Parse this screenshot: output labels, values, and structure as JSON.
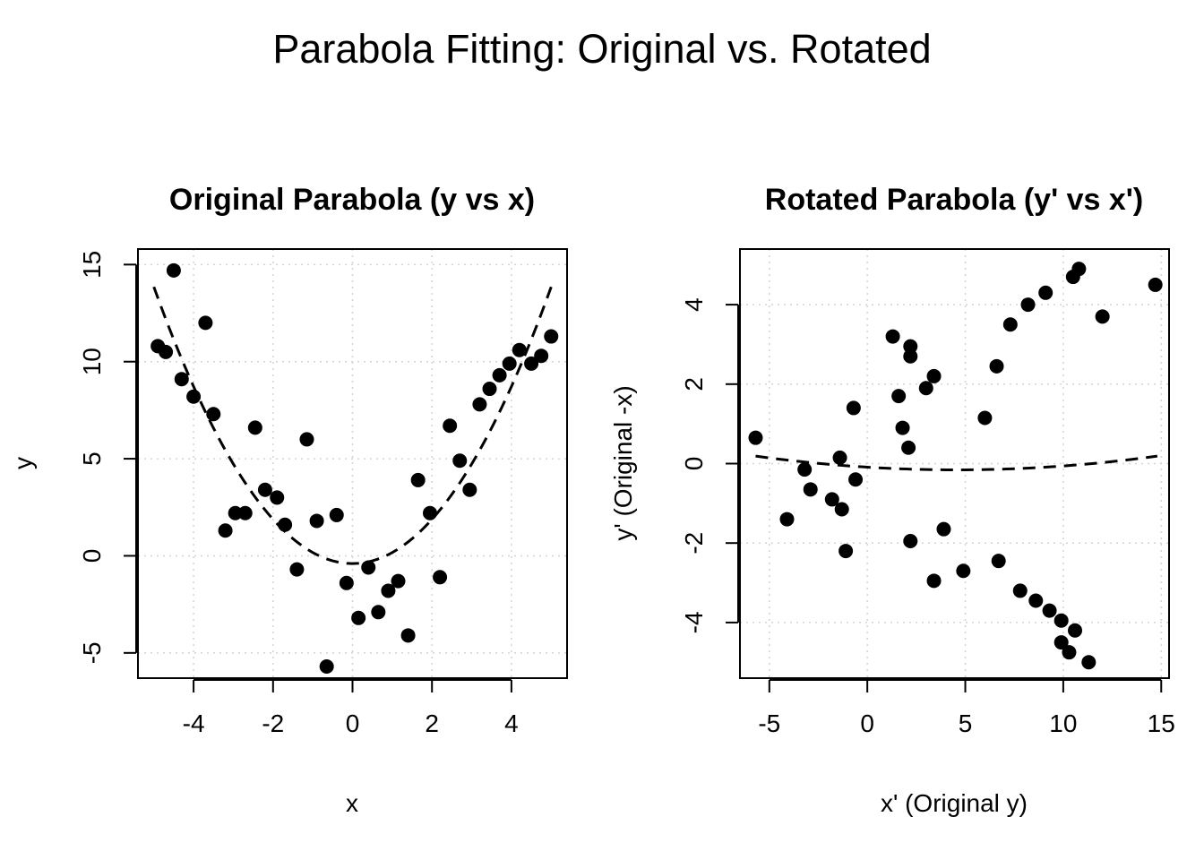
{
  "figure": {
    "title": "Parabola Fitting: Original vs. Rotated"
  },
  "chart_data": [
    {
      "type": "scatter",
      "title": "Original Parabola (y vs x)",
      "xlabel": "x",
      "ylabel": "y",
      "xlim": [
        -5.4,
        5.4
      ],
      "ylim": [
        -6.3,
        15.8
      ],
      "xticks": [
        -4,
        -2,
        0,
        2,
        4
      ],
      "yticks": [
        -5,
        0,
        5,
        10,
        15
      ],
      "grid": true,
      "series": [
        {
          "kind": "points",
          "x": [
            -4.9,
            -4.7,
            -4.5,
            -4.3,
            -4.0,
            -3.7,
            -3.5,
            -3.2,
            -2.95,
            -2.7,
            -2.45,
            -2.2,
            -1.9,
            -1.7,
            -1.4,
            -1.15,
            -0.9,
            -0.65,
            -0.4,
            -0.15,
            0.15,
            0.4,
            0.65,
            0.9,
            1.15,
            1.4,
            1.65,
            1.95,
            2.2,
            2.45,
            2.7,
            2.95,
            3.2,
            3.45,
            3.7,
            3.95,
            4.2,
            4.5,
            4.75,
            5.0
          ],
          "y": [
            10.8,
            10.5,
            14.7,
            9.1,
            8.2,
            12.0,
            7.3,
            1.3,
            2.2,
            2.2,
            6.6,
            3.4,
            3.0,
            1.6,
            -0.7,
            6.0,
            1.8,
            -5.7,
            2.1,
            -1.4,
            -3.2,
            -0.6,
            -2.9,
            -1.8,
            -1.3,
            -4.1,
            3.9,
            2.2,
            -1.1,
            6.7,
            4.9,
            3.4,
            7.8,
            8.6,
            9.3,
            9.9,
            10.6,
            9.9,
            10.3,
            11.3
          ]
        },
        {
          "kind": "fitted-curve",
          "equation_coefficients": {
            "a": 0.57,
            "b": 0.0,
            "c": -0.4
          },
          "x_range": [
            -5.0,
            5.0
          ]
        }
      ]
    },
    {
      "type": "scatter",
      "title": "Rotated Parabola (y' vs x')",
      "xlabel": "x' (Original y)",
      "ylabel": "y' (Original -x)",
      "xlim": [
        -6.5,
        15.4
      ],
      "ylim": [
        -5.4,
        5.4
      ],
      "xticks": [
        -5,
        0,
        5,
        10,
        15
      ],
      "yticks": [
        -4,
        -2,
        0,
        2,
        4
      ],
      "grid": true,
      "series": [
        {
          "kind": "points",
          "x": [
            10.8,
            10.5,
            14.7,
            9.1,
            8.2,
            12.0,
            7.3,
            1.3,
            2.2,
            2.2,
            6.6,
            3.4,
            3.0,
            1.6,
            -0.7,
            6.0,
            1.8,
            -5.7,
            2.1,
            -1.4,
            -3.2,
            -0.6,
            -2.9,
            -1.8,
            -1.3,
            -4.1,
            3.9,
            2.2,
            -1.1,
            6.7,
            4.9,
            3.4,
            7.8,
            8.6,
            9.3,
            9.9,
            10.6,
            9.9,
            10.3,
            11.3
          ],
          "y": [
            4.9,
            4.7,
            4.5,
            4.3,
            4.0,
            3.7,
            3.5,
            3.2,
            2.95,
            2.7,
            2.45,
            2.2,
            1.9,
            1.7,
            1.4,
            1.15,
            0.9,
            0.65,
            0.4,
            0.15,
            -0.15,
            -0.4,
            -0.65,
            -0.9,
            -1.15,
            -1.4,
            -1.65,
            -1.95,
            -2.2,
            -2.45,
            -2.7,
            -2.95,
            -3.2,
            -3.45,
            -3.7,
            -3.95,
            -4.2,
            -4.5,
            -4.75,
            -5.0
          ]
        },
        {
          "kind": "fitted-curve",
          "equation_coefficients": {
            "a": 0.0033,
            "b": -0.03,
            "c": -0.09
          },
          "x_range": [
            -5.7,
            14.8
          ]
        }
      ]
    }
  ]
}
